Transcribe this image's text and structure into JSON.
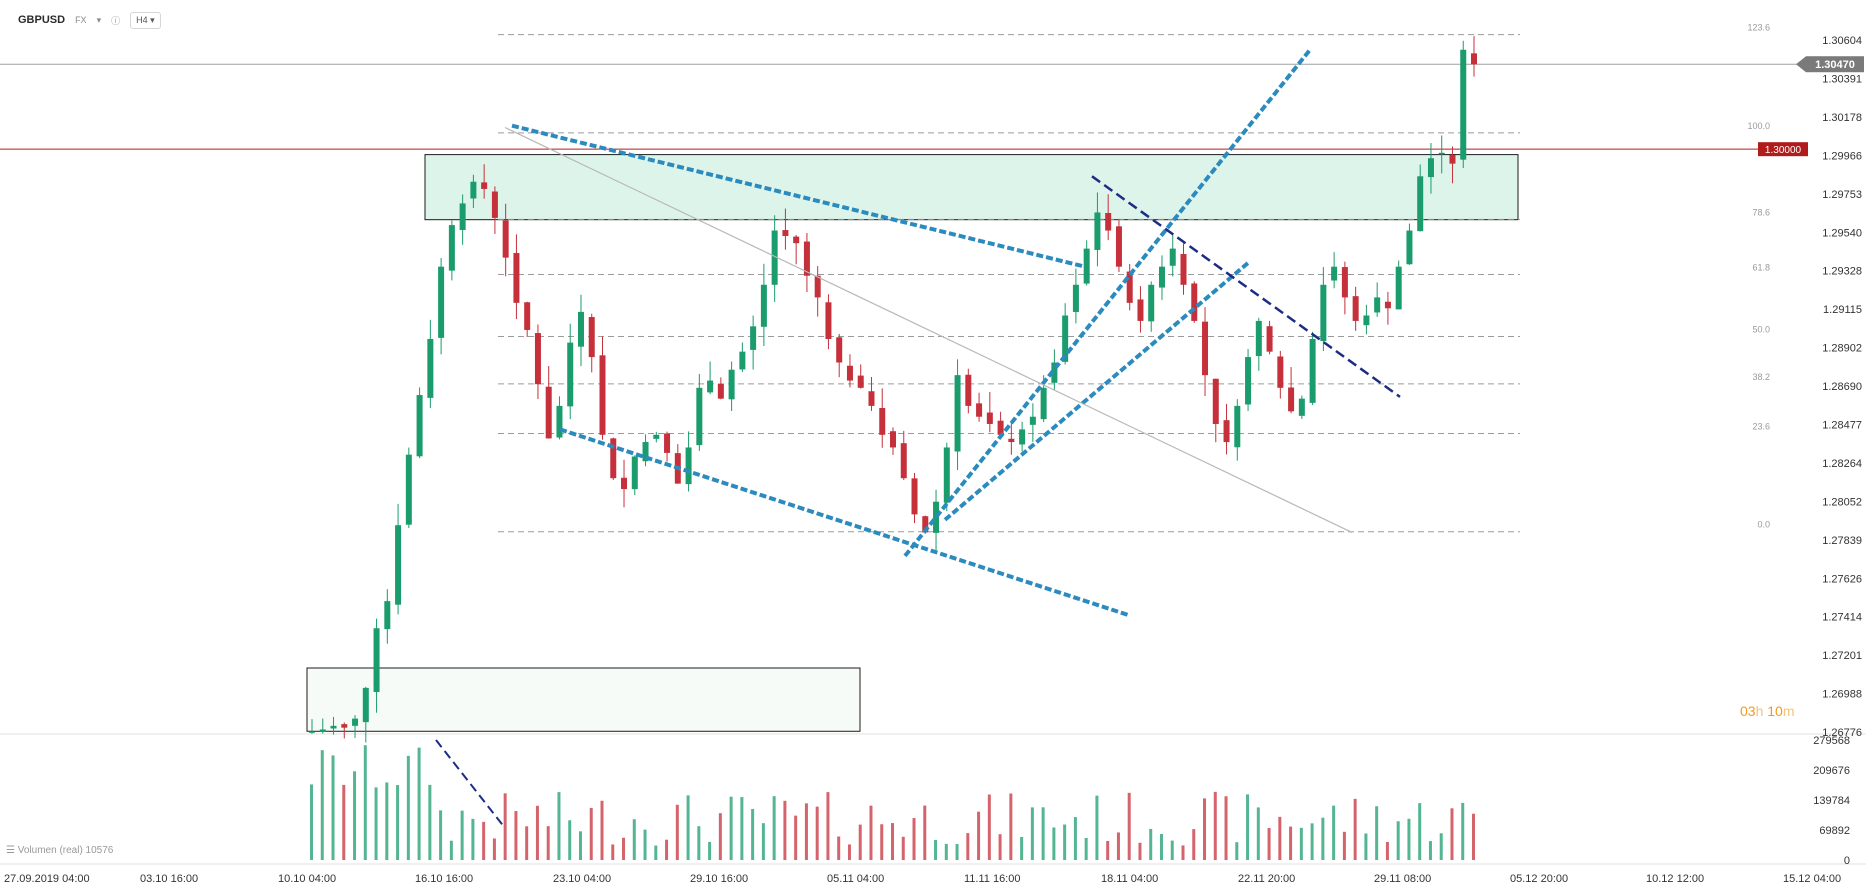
{
  "header": {
    "symbol": "GBPUSD",
    "market": "FX",
    "timeframe": "H4"
  },
  "price_flags": {
    "current_price": "1.30470",
    "level_flag": "1.30000"
  },
  "countdown": {
    "hours": "03",
    "h": "h",
    "minutes": "10",
    "m": "m"
  },
  "volume_legend": "Volumen (real) 10576",
  "colors": {
    "up": "#1a9c6c",
    "down": "#c5303b",
    "zone_fill": "#d7f2e8",
    "trendline_blue": "#2b8bbf",
    "trendline_navy": "#1c2c84",
    "level_red": "#b01c1c",
    "flag_gray": "#7a7a7a"
  },
  "chart_data": {
    "type": "candlestick",
    "symbol": "GBPUSD",
    "timeframe": "H4",
    "y_axis": {
      "ylim": [
        1.26776,
        1.30604
      ],
      "ticks": [
        "1.30604",
        "1.30391",
        "1.30178",
        "1.29966",
        "1.29753",
        "1.29540",
        "1.29328",
        "1.29115",
        "1.28902",
        "1.28690",
        "1.28477",
        "1.28264",
        "1.28052",
        "1.27839",
        "1.27626",
        "1.27414",
        "1.27201",
        "1.26988",
        "1.26776"
      ]
    },
    "x_axis": {
      "ticks": [
        "27.09.2019  04:00",
        "03.10  16:00",
        "10.10  04:00",
        "16.10  16:00",
        "23.10  04:00",
        "29.10  16:00",
        "05.11  04:00",
        "11.11  16:00",
        "18.11  04:00",
        "22.11  20:00",
        "29.11  08:00",
        "05.12  20:00",
        "10.12  12:00",
        "15.12  04:00"
      ]
    },
    "volume_axis": {
      "ticks": [
        "279568",
        "209676",
        "139784",
        "69892",
        "0"
      ],
      "max": 279568
    },
    "fibonacci_levels": [
      {
        "ratio": "123.6",
        "price": 1.30634
      },
      {
        "ratio": "100.0",
        "price": 1.3009
      },
      {
        "ratio": "78.6",
        "price": 1.29612
      },
      {
        "ratio": "61.8",
        "price": 1.29307
      },
      {
        "ratio": "50.0",
        "price": 1.28964
      },
      {
        "ratio": "38.2",
        "price": 1.28702
      },
      {
        "ratio": "23.6",
        "price": 1.28427
      },
      {
        "ratio": "0.0",
        "price": 1.27884
      }
    ],
    "horizontal_level": 1.3,
    "last_price": 1.3047,
    "zones": [
      {
        "price_top": 1.2997,
        "price_bottom": 1.2961,
        "shading": "green"
      },
      {
        "price_top": 1.2713,
        "price_bottom": 1.2678,
        "shading": "light"
      }
    ],
    "approx_close_path": [
      1.2678,
      1.2679,
      1.2681,
      1.268,
      1.2685,
      1.2702,
      1.2735,
      1.275,
      1.2792,
      1.2831,
      1.2864,
      1.2895,
      1.2935,
      1.2958,
      1.297,
      1.2982,
      1.2978,
      1.2962,
      1.294,
      1.2915,
      1.29,
      1.287,
      1.284,
      1.2858,
      1.2893,
      1.291,
      1.2885,
      1.2842,
      1.2818,
      1.2812,
      1.283,
      1.2838,
      1.2842,
      1.2832,
      1.2815,
      1.2835,
      1.2868,
      1.2872,
      1.2862,
      1.2878,
      1.2888,
      1.2902,
      1.2925,
      1.2955,
      1.2952,
      1.2948,
      1.293,
      1.2918,
      1.2895,
      1.2882,
      1.2872,
      1.2868,
      1.2858,
      1.2842,
      1.2835,
      1.2818,
      1.2798,
      1.2788,
      1.2805,
      1.2835,
      1.2875,
      1.2858,
      1.2852,
      1.2848,
      1.2842,
      1.2838,
      1.2845,
      1.2852,
      1.2868,
      1.2882,
      1.2908,
      1.2925,
      1.2945,
      1.2965,
      1.2955,
      1.2935,
      1.2915,
      1.2905,
      1.2925,
      1.2935,
      1.2945,
      1.2925,
      1.2905,
      1.2875,
      1.2848,
      1.2838,
      1.2858,
      1.2885,
      1.2905,
      1.2888,
      1.2868,
      1.2855,
      1.2862,
      1.2895,
      1.2925,
      1.2935,
      1.2918,
      1.2905,
      1.2908,
      1.2918,
      1.2912,
      1.2935,
      1.2955,
      1.2985,
      1.2995,
      1.2998,
      1.2992,
      1.3055,
      1.3047
    ]
  }
}
